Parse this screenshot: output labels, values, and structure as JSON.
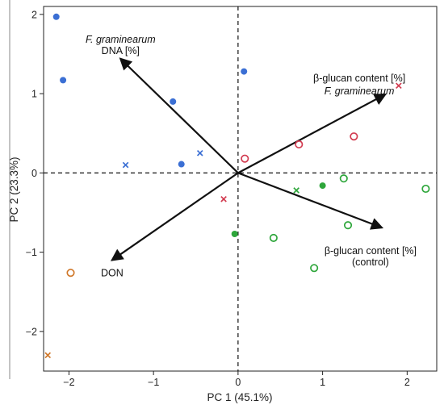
{
  "chart_data": {
    "type": "scatter",
    "title": "",
    "xlabel": "PC 1 (45.1%)",
    "ylabel": "PC 2 (23.3%)",
    "xlim": [
      -2.3,
      2.35
    ],
    "ylim": [
      -2.5,
      2.1
    ],
    "xticks": [
      -2,
      -1,
      0,
      1,
      2
    ],
    "yticks": [
      -2,
      -1,
      0,
      1,
      2
    ],
    "reference_lines": {
      "x": 0,
      "y": 0,
      "style": "dashed"
    },
    "colors": {
      "blue": "#3b6fd4",
      "red": "#d23a4f",
      "green": "#2ea63b",
      "orange": "#d0782a",
      "arrow": "#111111"
    },
    "points": [
      {
        "x": -2.15,
        "y": 1.97,
        "marker": "filled-circle",
        "color": "blue"
      },
      {
        "x": -2.07,
        "y": 1.17,
        "marker": "filled-circle",
        "color": "blue"
      },
      {
        "x": -0.77,
        "y": 0.9,
        "marker": "filled-circle",
        "color": "blue"
      },
      {
        "x": -0.67,
        "y": 0.11,
        "marker": "filled-circle",
        "color": "blue"
      },
      {
        "x": 0.07,
        "y": 1.28,
        "marker": "filled-circle",
        "color": "blue"
      },
      {
        "x": -1.33,
        "y": 0.1,
        "marker": "cross",
        "color": "blue"
      },
      {
        "x": -0.45,
        "y": 0.25,
        "marker": "cross",
        "color": "blue"
      },
      {
        "x": -0.17,
        "y": -0.33,
        "marker": "cross",
        "color": "red"
      },
      {
        "x": 1.9,
        "y": 1.1,
        "marker": "cross",
        "color": "red"
      },
      {
        "x": 0.08,
        "y": 0.18,
        "marker": "open-circle",
        "color": "red"
      },
      {
        "x": 0.72,
        "y": 0.36,
        "marker": "open-circle",
        "color": "red"
      },
      {
        "x": 1.37,
        "y": 0.46,
        "marker": "open-circle",
        "color": "red"
      },
      {
        "x": -0.04,
        "y": -0.77,
        "marker": "filled-circle",
        "color": "green"
      },
      {
        "x": 1.0,
        "y": -0.16,
        "marker": "filled-circle",
        "color": "green"
      },
      {
        "x": 0.69,
        "y": -0.22,
        "marker": "cross",
        "color": "green"
      },
      {
        "x": 0.42,
        "y": -0.82,
        "marker": "open-circle",
        "color": "green"
      },
      {
        "x": 0.9,
        "y": -1.2,
        "marker": "open-circle",
        "color": "green"
      },
      {
        "x": 1.25,
        "y": -0.07,
        "marker": "open-circle",
        "color": "green"
      },
      {
        "x": 1.3,
        "y": -0.66,
        "marker": "open-circle",
        "color": "green"
      },
      {
        "x": 2.22,
        "y": -0.2,
        "marker": "open-circle",
        "color": "green"
      },
      {
        "x": -1.98,
        "y": -1.26,
        "marker": "open-circle",
        "color": "orange"
      },
      {
        "x": -2.25,
        "y": -2.3,
        "marker": "cross",
        "color": "orange"
      }
    ],
    "loadings": [
      {
        "x": -1.39,
        "y": 1.44,
        "label_lines": [
          "F. graminearum",
          "DNA [%]"
        ],
        "italic_lines": [
          0
        ]
      },
      {
        "x": 1.74,
        "y": 0.99,
        "label_lines": [
          "β-glucan content [%]",
          "F. graminearum"
        ],
        "italic_lines": [
          1
        ]
      },
      {
        "x": 1.7,
        "y": -0.69,
        "label_lines": [
          "β-glucan content [%]",
          "(control)"
        ],
        "italic_lines": []
      },
      {
        "x": -1.49,
        "y": -1.1,
        "label_lines": [
          "DON"
        ],
        "italic_lines": []
      }
    ]
  }
}
